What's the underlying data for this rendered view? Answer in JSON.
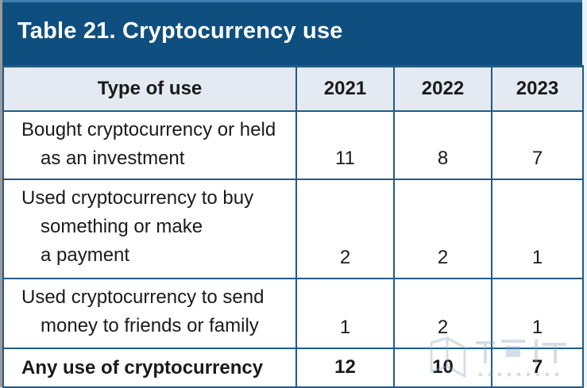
{
  "title": "Table 21. Cryptocurrency use",
  "columns": [
    "Type of use",
    "2021",
    "2022",
    "2023"
  ],
  "rows": [
    {
      "lines": [
        "Bought cryptocurrency or held",
        "as an investment"
      ],
      "values": [
        "11",
        "8",
        "7"
      ]
    },
    {
      "lines": [
        "Used cryptocurrency to buy",
        "something or make",
        "a payment"
      ],
      "values": [
        "2",
        "2",
        "1"
      ]
    },
    {
      "lines": [
        "Used cryptocurrency to send",
        "money to friends or family"
      ],
      "values": [
        "1",
        "2",
        "1"
      ]
    }
  ],
  "total": {
    "label": "Any use of cryptocurrency",
    "values": [
      "12",
      "10",
      "7"
    ]
  },
  "chart_data": {
    "type": "table",
    "title": "Table 21. Cryptocurrency use",
    "columns": [
      "Type of use",
      "2021",
      "2022",
      "2023"
    ],
    "rows": [
      [
        "Bought cryptocurrency or held as an investment",
        11,
        8,
        7
      ],
      [
        "Used cryptocurrency to buy something or make a payment",
        2,
        2,
        1
      ],
      [
        "Used cryptocurrency to send money to friends or family",
        1,
        2,
        1
      ],
      [
        "Any use of cryptocurrency",
        12,
        10,
        7
      ]
    ]
  },
  "colors": {
    "title_background": "#0f4f7f",
    "header_background": "#e3eaf2",
    "rule": "#1f5b8a"
  }
}
